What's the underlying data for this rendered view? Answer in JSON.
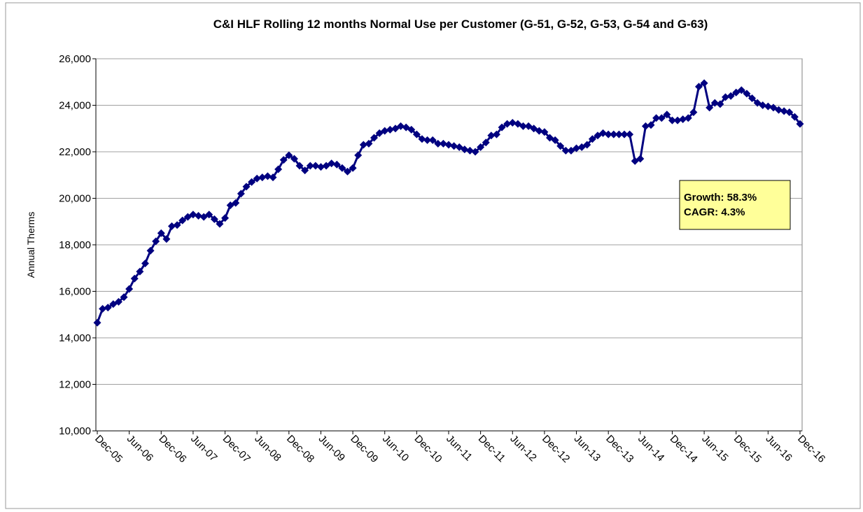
{
  "chart_data": {
    "type": "line",
    "title": "C&I HLF Rolling 12 months Normal Use per Customer (G-51, G-52, G-53, G-54 and G-63)",
    "y_label": "Annual Therms",
    "annotations": [
      "Growth: 58.3%",
      "CAGR: 4.3%"
    ],
    "categories": [
      "Dec-05",
      null,
      null,
      null,
      null,
      null,
      "Jun-06",
      null,
      null,
      null,
      null,
      null,
      "Dec-06",
      null,
      null,
      null,
      null,
      null,
      "Jun-07",
      null,
      null,
      null,
      null,
      null,
      "Dec-07",
      null,
      null,
      null,
      null,
      null,
      "Jun-08",
      null,
      null,
      null,
      null,
      null,
      "Dec-08",
      null,
      null,
      null,
      null,
      null,
      "Jun-09",
      null,
      null,
      null,
      null,
      null,
      "Dec-09",
      null,
      null,
      null,
      null,
      null,
      "Jun-10",
      null,
      null,
      null,
      null,
      null,
      "Dec-10",
      null,
      null,
      null,
      null,
      null,
      "Jun-11",
      null,
      null,
      null,
      null,
      null,
      "Dec-11",
      null,
      null,
      null,
      null,
      null,
      "Jun-12",
      null,
      null,
      null,
      null,
      null,
      "Dec-12",
      null,
      null,
      null,
      null,
      null,
      "Jun-13",
      null,
      null,
      null,
      null,
      null,
      "Dec-13",
      null,
      null,
      null,
      null,
      null,
      "Jun-14",
      null,
      null,
      null,
      null,
      null,
      "Dec-14",
      null,
      null,
      null,
      null,
      null,
      "Jun-15",
      null,
      null,
      null,
      null,
      null,
      "Dec-15",
      null,
      null,
      null,
      null,
      null,
      "Jun-16",
      null,
      null,
      null,
      null,
      null,
      "Dec-16"
    ],
    "series": [
      {
        "color": "#000080",
        "values": [
          14650,
          15250,
          15300,
          15450,
          15550,
          15750,
          16100,
          16550,
          16850,
          17200,
          17750,
          18150,
          18500,
          18250,
          18800,
          18850,
          19050,
          19200,
          19300,
          19250,
          19200,
          19300,
          19100,
          18900,
          19150,
          19700,
          19800,
          20200,
          20500,
          20700,
          20850,
          20900,
          20950,
          20900,
          21250,
          21650,
          21850,
          21700,
          21400,
          21200,
          21400,
          21400,
          21350,
          21400,
          21500,
          21450,
          21300,
          21150,
          21300,
          21850,
          22300,
          22350,
          22600,
          22800,
          22900,
          22950,
          23000,
          23100,
          23050,
          22950,
          22750,
          22550,
          22500,
          22500,
          22350,
          22350,
          22300,
          22250,
          22200,
          22100,
          22050,
          22000,
          22200,
          22400,
          22700,
          22750,
          23050,
          23200,
          23250,
          23200,
          23100,
          23100,
          23000,
          22900,
          22850,
          22600,
          22500,
          22250,
          22050,
          22050,
          22150,
          22200,
          22300,
          22550,
          22700,
          22800,
          22750,
          22750,
          22750,
          22750,
          22750,
          21600,
          21700,
          23100,
          23150,
          23450,
          23450,
          23600,
          23350,
          23350,
          23400,
          23450,
          23700,
          24800,
          24950,
          23900,
          24100,
          24050,
          24350,
          24400,
          24550,
          24650,
          24500,
          24300,
          24100,
          24000,
          23950,
          23900,
          23800,
          23750,
          23700,
          23500,
          23200
        ]
      }
    ],
    "ylim": [
      10000,
      26000
    ],
    "yticks": [
      {
        "value": 10000,
        "label": "10,000"
      },
      {
        "value": 12000,
        "label": "12,000"
      },
      {
        "value": 14000,
        "label": "14,000"
      },
      {
        "value": 16000,
        "label": "16,000"
      },
      {
        "value": 18000,
        "label": "18,000"
      },
      {
        "value": 20000,
        "label": "20,000"
      },
      {
        "value": 22000,
        "label": "22,000"
      },
      {
        "value": 24000,
        "label": "24,000"
      },
      {
        "value": 26000,
        "label": "26,000"
      }
    ],
    "grid": true
  }
}
